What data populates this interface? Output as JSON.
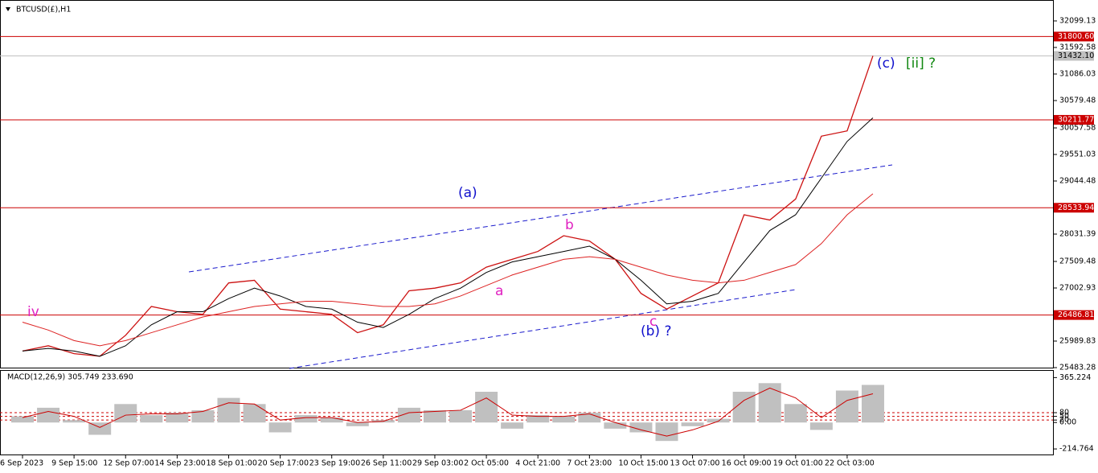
{
  "chart_data": [
    {
      "type": "line",
      "title": "BTCUSD(£),H1",
      "categories": [
        "6 Sep 2023",
        null,
        "9 Sep 15:00",
        null,
        "12 Sep 07:00",
        null,
        "14 Sep 23:00",
        null,
        "18 Sep 01:00",
        null,
        "20 Sep 17:00",
        null,
        "23 Sep 19:00",
        null,
        "26 Sep 11:00",
        null,
        "29 Sep 03:00",
        null,
        "2 Oct 05:00",
        null,
        "4 Oct 21:00",
        null,
        "7 Oct 23:00",
        null,
        "10 Oct 15:00",
        null,
        "13 Oct 07:00",
        null,
        "16 Oct 09:00",
        null,
        "19 Oct 01:00",
        null,
        "22 Oct 03:00",
        null
      ],
      "series": [
        {
          "color": "#cc1111",
          "values": [
            25800,
            25900,
            25750,
            25700,
            26100,
            26650,
            26550,
            26500,
            27100,
            27150,
            26600,
            26550,
            26500,
            26150,
            26300,
            26950,
            27000,
            27100,
            27400,
            27550,
            27700,
            28000,
            27900,
            27550,
            26900,
            26600,
            26850,
            27100,
            28400,
            28300,
            28700,
            29900,
            30000,
            31432.1
          ]
        },
        {
          "color": "#000000",
          "values": [
            25800,
            25850,
            25800,
            25700,
            25900,
            26300,
            26550,
            26550,
            26800,
            27000,
            26850,
            26650,
            26600,
            26350,
            26250,
            26500,
            26800,
            27000,
            27300,
            27500,
            27600,
            27700,
            27800,
            27550,
            27150,
            26700,
            26750,
            26900,
            27500,
            28100,
            28400,
            29100,
            29800,
            30250
          ]
        },
        {
          "color": "#dd2222",
          "values": [
            26350,
            26200,
            26000,
            25900,
            26000,
            26150,
            26300,
            26450,
            26550,
            26650,
            26700,
            26750,
            26750,
            26700,
            26650,
            26650,
            26700,
            26850,
            27050,
            27250,
            27400,
            27550,
            27600,
            27550,
            27400,
            27250,
            27150,
            27100,
            27150,
            27300,
            27450,
            27850,
            28400,
            28800
          ]
        }
      ],
      "ylim": [
        25468,
        32498
      ],
      "yticks": [
        32099.13,
        31592.58,
        31086.03,
        30579.48,
        30057.58,
        29551.03,
        29044.48,
        28031.39,
        27509.48,
        27002.93,
        25989.83,
        25483.28
      ],
      "levels": [
        {
          "value": 31800.6,
          "label": "31800.60"
        },
        30211.77,
        28533.94,
        26486.81
      ],
      "current": {
        "value": 31432.1,
        "label": "31432.10"
      },
      "annotations": [
        "iv",
        "(a)",
        "b",
        "a",
        "c",
        "(b) ?",
        "(c)",
        "[ii] ?"
      ]
    },
    {
      "type": "macd",
      "title": "MACD(12,26,9) 305.749 233.690",
      "values": [
        50,
        120,
        20,
        -100,
        150,
        60,
        80,
        100,
        200,
        150,
        -80,
        60,
        40,
        -30,
        20,
        120,
        100,
        100,
        250,
        -50,
        60,
        50,
        80,
        -50,
        -80,
        -150,
        -30,
        30,
        250,
        320,
        150,
        -60,
        260,
        305.749
      ],
      "signal": [
        40,
        90,
        50,
        -40,
        60,
        70,
        70,
        90,
        160,
        150,
        20,
        40,
        40,
        0,
        10,
        80,
        90,
        100,
        200,
        60,
        50,
        50,
        70,
        0,
        -60,
        -110,
        -60,
        10,
        180,
        280,
        200,
        40,
        180,
        233.69
      ],
      "ylim": [
        -260,
        420
      ],
      "yticks": [
        365.224,
        80,
        50,
        {
          "value": 0,
          "label": "0.00"
        },
        20,
        -214.764
      ]
    }
  ]
}
